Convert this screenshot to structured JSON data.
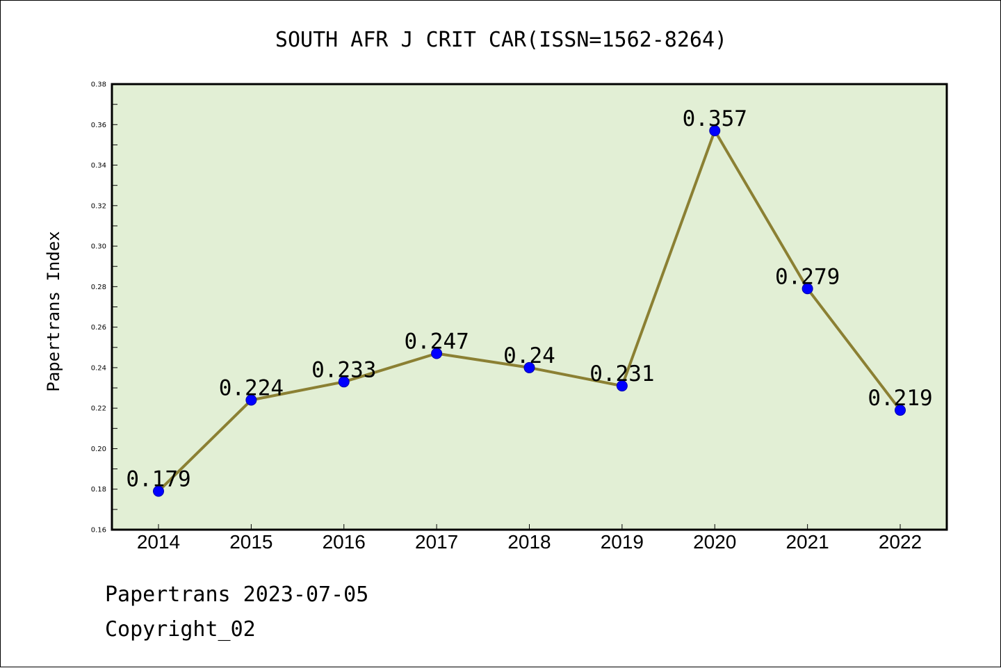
{
  "chart_data": {
    "type": "line",
    "title": "SOUTH AFR J CRIT CAR(ISSN=1562-8264)",
    "xlabel": "",
    "ylabel": "Papertrans Index",
    "categories": [
      "2014",
      "2015",
      "2016",
      "2017",
      "2018",
      "2019",
      "2020",
      "2021",
      "2022"
    ],
    "values": [
      0.179,
      0.224,
      0.233,
      0.247,
      0.24,
      0.231,
      0.357,
      0.279,
      0.219
    ],
    "data_labels": [
      "0.179",
      "0.224",
      "0.233",
      "0.247",
      "0.24",
      "0.231",
      "0.357",
      "0.279",
      "0.219"
    ],
    "ylim": [
      0.16,
      0.38
    ],
    "yticks": [
      "0.16",
      "0.18",
      "0.20",
      "0.22",
      "0.24",
      "0.26",
      "0.28",
      "0.30",
      "0.32",
      "0.34",
      "0.36",
      "0.38"
    ],
    "grid": false,
    "colors": {
      "plot_background": "#e2efd5",
      "line": "#8b8033",
      "marker": "#0000ff"
    }
  },
  "footer": {
    "line1": "Papertrans 2023-07-05",
    "line2": "Copyright_02"
  }
}
